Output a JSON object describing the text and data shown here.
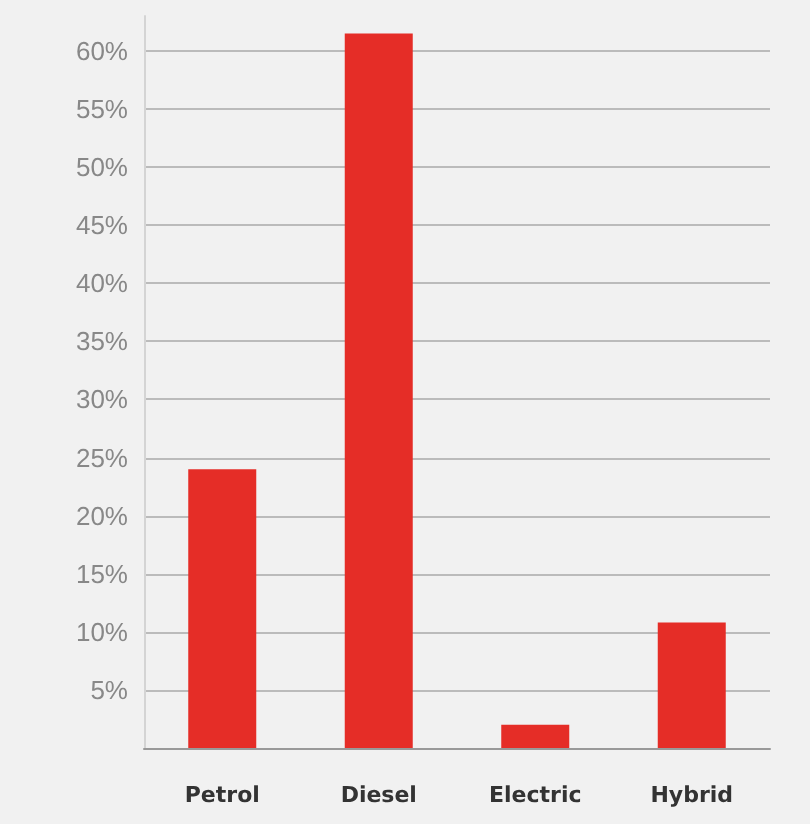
{
  "chart_data": {
    "type": "bar",
    "categories": [
      "Petrol",
      "Diesel",
      "Electric",
      "Hybrid"
    ],
    "values": [
      24,
      61.5,
      2,
      10.8
    ],
    "color": "#e52d27",
    "ylim": [
      0,
      63
    ],
    "yticks": [
      {
        "value": 0,
        "label": null
      },
      {
        "value": 5,
        "label": "5%"
      },
      {
        "value": 10,
        "label": "10%"
      },
      {
        "value": 15,
        "label": "15%"
      },
      {
        "value": 20,
        "label": "20%"
      },
      {
        "value": 25,
        "label": "25%"
      },
      {
        "value": 30,
        "label": "30%"
      },
      {
        "value": 35,
        "label": "35%"
      },
      {
        "value": 40,
        "label": "40%"
      },
      {
        "value": 45,
        "label": "45%"
      },
      {
        "value": 50,
        "label": "50%"
      },
      {
        "value": 55,
        "label": "55%"
      },
      {
        "value": 60,
        "label": "60%"
      }
    ],
    "grid": "y"
  }
}
